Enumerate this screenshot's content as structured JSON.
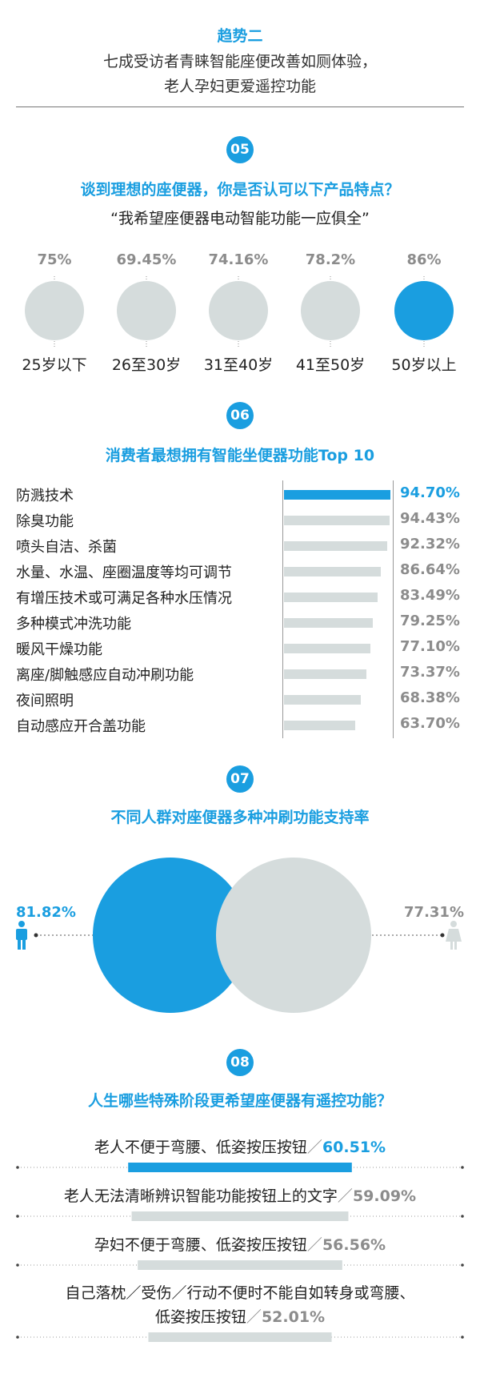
{
  "header": {
    "title": "趋势二",
    "subtitle_line1": "七成受访者青睐智能座便改善如厕体验，",
    "subtitle_line2": "老人孕妇更爱遥控功能"
  },
  "section05": {
    "badge": "05",
    "title": "谈到理想的座便器，你是否认可以下产品特点？",
    "quote": "“我希望座便器电动智能功能一应俱全”"
  },
  "section06": {
    "badge": "06",
    "title": "消费者最想拥有智能坐便器功能Top 10"
  },
  "section07": {
    "badge": "07",
    "title": "不同人群对座便器多种冲刷功能支持率"
  },
  "section08": {
    "badge": "08",
    "title": "人生哪些特殊阶段更希望座便器有遥控功能？",
    "items": [
      {
        "text": "老人不便于弯腰、低姿按压按钮",
        "sep": "／",
        "pct": "60.51%"
      },
      {
        "text": "老人无法清晰辨识智能功能按钮上的文字",
        "sep": "／",
        "pct": "59.09%"
      },
      {
        "text": "孕妇不便于弯腰、低姿按压按钮",
        "sep": "／",
        "pct": "56.56%"
      },
      {
        "text_line1": "自己落枕／受伤／行动不便时不能自如转身或弯腰、",
        "text_line2": "低姿按压按钮",
        "sep": "／",
        "pct": "52.01%"
      }
    ]
  },
  "colors": {
    "accent": "#1a9ee0",
    "muted": "#d5dcdc",
    "muted_text": "#8c8c8c"
  },
  "icons": {
    "male": "male-person-icon",
    "female": "female-person-icon"
  },
  "chart_data": [
    {
      "type": "bubble",
      "title": "谈到理想的座便器，你是否认可以下产品特点？",
      "categories": [
        "25岁以下",
        "26至30岁",
        "31至40岁",
        "41至50岁",
        "50岁以上"
      ],
      "values": [
        75,
        69.45,
        74.16,
        78.2,
        86
      ],
      "value_labels": [
        "75%",
        "69.45%",
        "74.16%",
        "78.2%",
        "86%"
      ],
      "highlight_index": 4
    },
    {
      "type": "bar",
      "orientation": "horizontal",
      "title": "消费者最想拥有智能坐便器功能Top 10",
      "categories": [
        "防溅技术",
        "除臭功能",
        "喷头自洁、杀菌",
        "水量、水温、座圈温度等均可调节",
        "有增压技术或可满足各种水压情况",
        "多种模式冲洗功能",
        "暖风干燥功能",
        "离座/脚触感应自动冲刷功能",
        "夜间照明",
        "自动感应开合盖功能"
      ],
      "values": [
        94.7,
        94.43,
        92.32,
        86.64,
        83.49,
        79.25,
        77.1,
        73.37,
        68.38,
        63.7
      ],
      "value_labels": [
        "94.70%",
        "94.43%",
        "92.32%",
        "86.64%",
        "83.49%",
        "79.25%",
        "77.10%",
        "73.37%",
        "68.38%",
        "63.70%"
      ],
      "highlight_index": 0
    },
    {
      "type": "venn",
      "title": "不同人群对座便器多种冲刷功能支持率",
      "values": [
        81.82,
        77.31
      ],
      "value_labels": [
        "81.82%",
        "77.31%"
      ]
    },
    {
      "type": "bar",
      "orientation": "horizontal",
      "title": "人生哪些特殊阶段更希望座便器有遥控功能？",
      "values": [
        60.51,
        59.09,
        56.56,
        52.01
      ],
      "highlight_index": 0
    }
  ]
}
